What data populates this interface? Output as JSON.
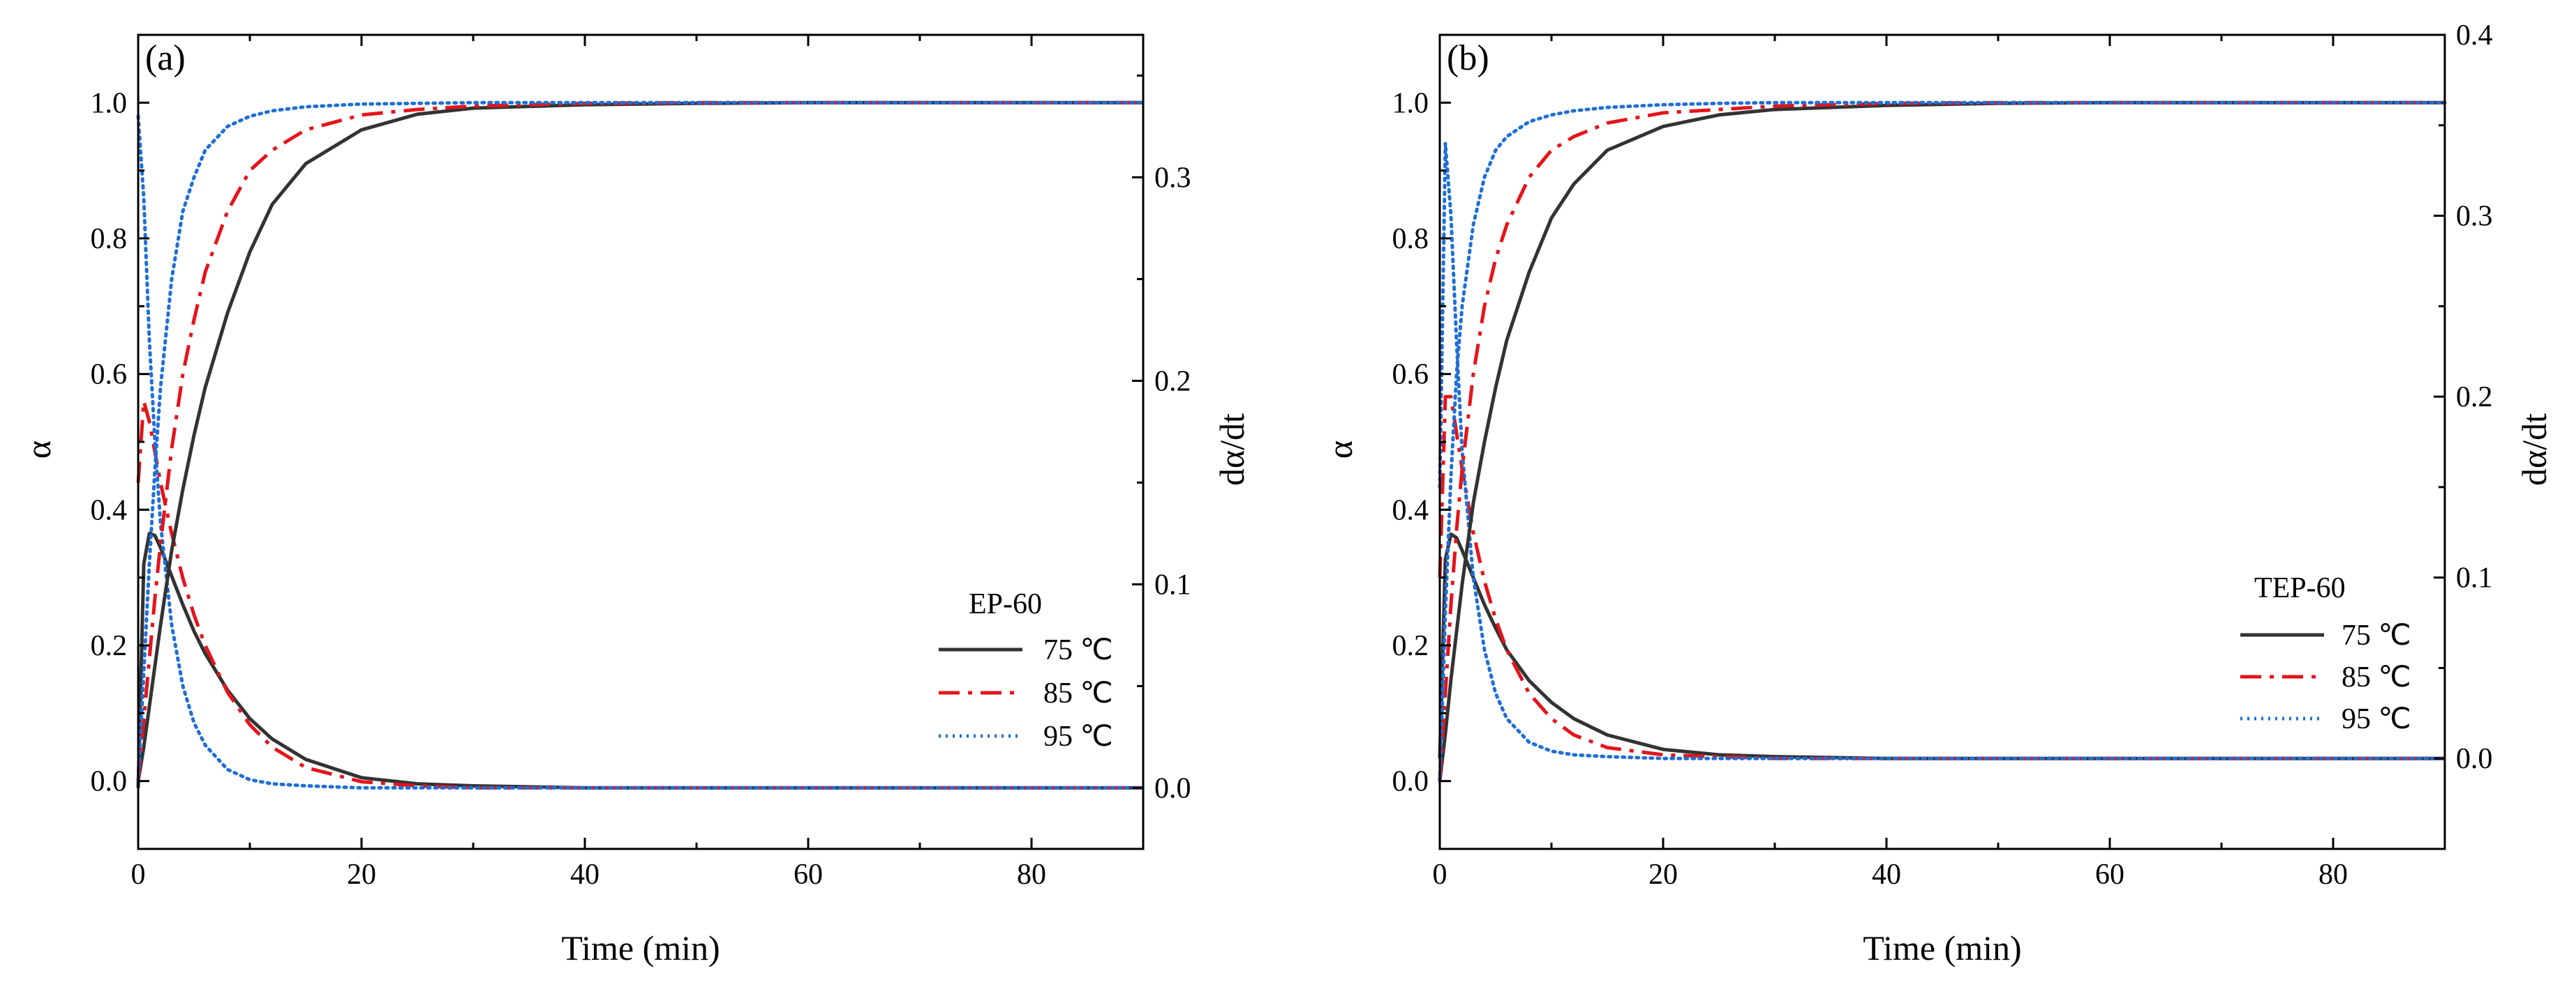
{
  "figure": {
    "panels": [
      {
        "label": "(a)",
        "legend_title": "EP-60",
        "xlabel": "Time (min)",
        "ylabel_left": "α",
        "ylabel_right": "dα/dt"
      },
      {
        "label": "(b)",
        "legend_title": "TEP-60",
        "xlabel": "Time (min)",
        "ylabel_left": "α",
        "ylabel_right": "dα/dt"
      }
    ],
    "legend": [
      "75 ℃",
      "85 ℃",
      "95 ℃"
    ]
  },
  "chart_data": [
    {
      "type": "line",
      "title": "(a)",
      "legend_title": "EP-60",
      "xlabel": "Time (min)",
      "ylabel": "α",
      "ylabel_right": "dα/dt",
      "xlim": [
        0,
        90
      ],
      "ylim": [
        -0.1,
        1.1
      ],
      "ylim_right": [
        -0.03,
        0.37
      ],
      "xticks": [
        "0",
        "20",
        "40",
        "60",
        "80"
      ],
      "yticks": [
        "0.0",
        "0.2",
        "0.4",
        "0.6",
        "0.8",
        "1.0"
      ],
      "yticks_right": [
        "0.0",
        "0.1",
        "0.2",
        "0.3"
      ],
      "legend_position": "right",
      "x": [
        0,
        0.5,
        1,
        1.5,
        2,
        3,
        4,
        5,
        6,
        8,
        10,
        12,
        15,
        20,
        25,
        30,
        40,
        50,
        60,
        70,
        80,
        90
      ],
      "alpha_series": [
        {
          "name": "75 ℃",
          "color": "#333333",
          "style": "solid",
          "values": [
            0,
            0.05,
            0.11,
            0.17,
            0.23,
            0.34,
            0.43,
            0.51,
            0.58,
            0.69,
            0.78,
            0.85,
            0.91,
            0.96,
            0.983,
            0.992,
            0.997,
            0.999,
            1.0,
            1.0,
            1.0,
            1.0
          ]
        },
        {
          "name": "85 ℃",
          "color": "#e4141b",
          "style": "dashdot",
          "values": [
            0,
            0.09,
            0.18,
            0.27,
            0.35,
            0.49,
            0.6,
            0.68,
            0.75,
            0.84,
            0.9,
            0.93,
            0.96,
            0.982,
            0.99,
            0.995,
            0.999,
            1.0,
            1.0,
            1.0,
            1.0,
            1.0
          ]
        },
        {
          "name": "95 ℃",
          "color": "#1f6fd6",
          "style": "dotted",
          "values": [
            0,
            0.16,
            0.32,
            0.46,
            0.58,
            0.74,
            0.84,
            0.89,
            0.93,
            0.965,
            0.98,
            0.988,
            0.994,
            0.998,
            0.999,
            1.0,
            1.0,
            1.0,
            1.0,
            1.0,
            1.0,
            1.0
          ]
        }
      ],
      "rate_series": [
        {
          "name": "75 ℃",
          "color": "#333333",
          "style": "solid",
          "values": [
            0,
            0.11,
            0.125,
            0.124,
            0.118,
            0.104,
            0.09,
            0.077,
            0.066,
            0.048,
            0.034,
            0.024,
            0.014,
            0.005,
            0.002,
            0.001,
            0,
            0,
            0,
            0,
            0,
            0
          ]
        },
        {
          "name": "85 ℃",
          "color": "#e4141b",
          "style": "dashdot",
          "values": [
            0.15,
            0.19,
            0.18,
            0.165,
            0.15,
            0.125,
            0.103,
            0.085,
            0.07,
            0.047,
            0.031,
            0.02,
            0.01,
            0.003,
            0.001,
            0,
            0,
            0,
            0,
            0,
            0,
            0
          ]
        },
        {
          "name": "95 ℃",
          "color": "#1f6fd6",
          "style": "dotted",
          "values": [
            0.33,
            0.29,
            0.22,
            0.17,
            0.13,
            0.08,
            0.05,
            0.032,
            0.021,
            0.009,
            0.004,
            0.002,
            0.001,
            0,
            0,
            0,
            0,
            0,
            0,
            0,
            0,
            0
          ]
        }
      ]
    },
    {
      "type": "line",
      "title": "(b)",
      "legend_title": "TEP-60",
      "xlabel": "Time (min)",
      "ylabel": "α",
      "ylabel_right": "dα/dt",
      "xlim": [
        0,
        90
      ],
      "ylim": [
        -0.1,
        1.1
      ],
      "ylim_right": [
        -0.05,
        0.4
      ],
      "xticks": [
        "0",
        "20",
        "40",
        "60",
        "80"
      ],
      "yticks": [
        "0.0",
        "0.2",
        "0.4",
        "0.6",
        "0.8",
        "1.0"
      ],
      "yticks_right": [
        "0.0",
        "0.1",
        "0.2",
        "0.3",
        "0.4"
      ],
      "legend_position": "right",
      "x": [
        0,
        0.5,
        1,
        1.5,
        2,
        3,
        4,
        5,
        6,
        8,
        10,
        12,
        15,
        20,
        25,
        30,
        40,
        50,
        60,
        70,
        80,
        90
      ],
      "alpha_series": [
        {
          "name": "75 ℃",
          "color": "#333333",
          "style": "solid",
          "values": [
            0,
            0.07,
            0.15,
            0.22,
            0.29,
            0.41,
            0.5,
            0.58,
            0.65,
            0.75,
            0.83,
            0.88,
            0.93,
            0.965,
            0.982,
            0.99,
            0.996,
            0.999,
            1.0,
            1.0,
            1.0,
            1.0
          ]
        },
        {
          "name": "85 ℃",
          "color": "#e4141b",
          "style": "dashdot",
          "values": [
            0,
            0.13,
            0.26,
            0.37,
            0.46,
            0.6,
            0.7,
            0.77,
            0.82,
            0.89,
            0.93,
            0.95,
            0.97,
            0.985,
            0.99,
            0.995,
            0.999,
            1.0,
            1.0,
            1.0,
            1.0,
            1.0
          ]
        },
        {
          "name": "95 ℃",
          "color": "#1f6fd6",
          "style": "dotted",
          "values": [
            0,
            0.25,
            0.45,
            0.6,
            0.7,
            0.82,
            0.89,
            0.93,
            0.95,
            0.972,
            0.982,
            0.988,
            0.993,
            0.997,
            0.999,
            1.0,
            1.0,
            1.0,
            1.0,
            1.0,
            1.0,
            1.0
          ]
        }
      ],
      "rate_series": [
        {
          "name": "75 ℃",
          "color": "#333333",
          "style": "solid",
          "values": [
            0,
            0.11,
            0.124,
            0.122,
            0.115,
            0.1,
            0.085,
            0.072,
            0.06,
            0.043,
            0.031,
            0.022,
            0.013,
            0.005,
            0.002,
            0.001,
            0,
            0,
            0,
            0,
            0,
            0
          ]
        },
        {
          "name": "85 ℃",
          "color": "#e4141b",
          "style": "dashdot",
          "values": [
            0.1,
            0.2,
            0.2,
            0.18,
            0.16,
            0.125,
            0.098,
            0.077,
            0.06,
            0.036,
            0.022,
            0.013,
            0.006,
            0.002,
            0.001,
            0,
            0,
            0,
            0,
            0,
            0,
            0
          ]
        },
        {
          "name": "95 ℃",
          "color": "#1f6fd6",
          "style": "dotted",
          "values": [
            0.15,
            0.34,
            0.3,
            0.23,
            0.17,
            0.1,
            0.06,
            0.036,
            0.022,
            0.009,
            0.004,
            0.002,
            0.001,
            0,
            0,
            0,
            0,
            0,
            0,
            0,
            0,
            0
          ]
        }
      ]
    }
  ]
}
